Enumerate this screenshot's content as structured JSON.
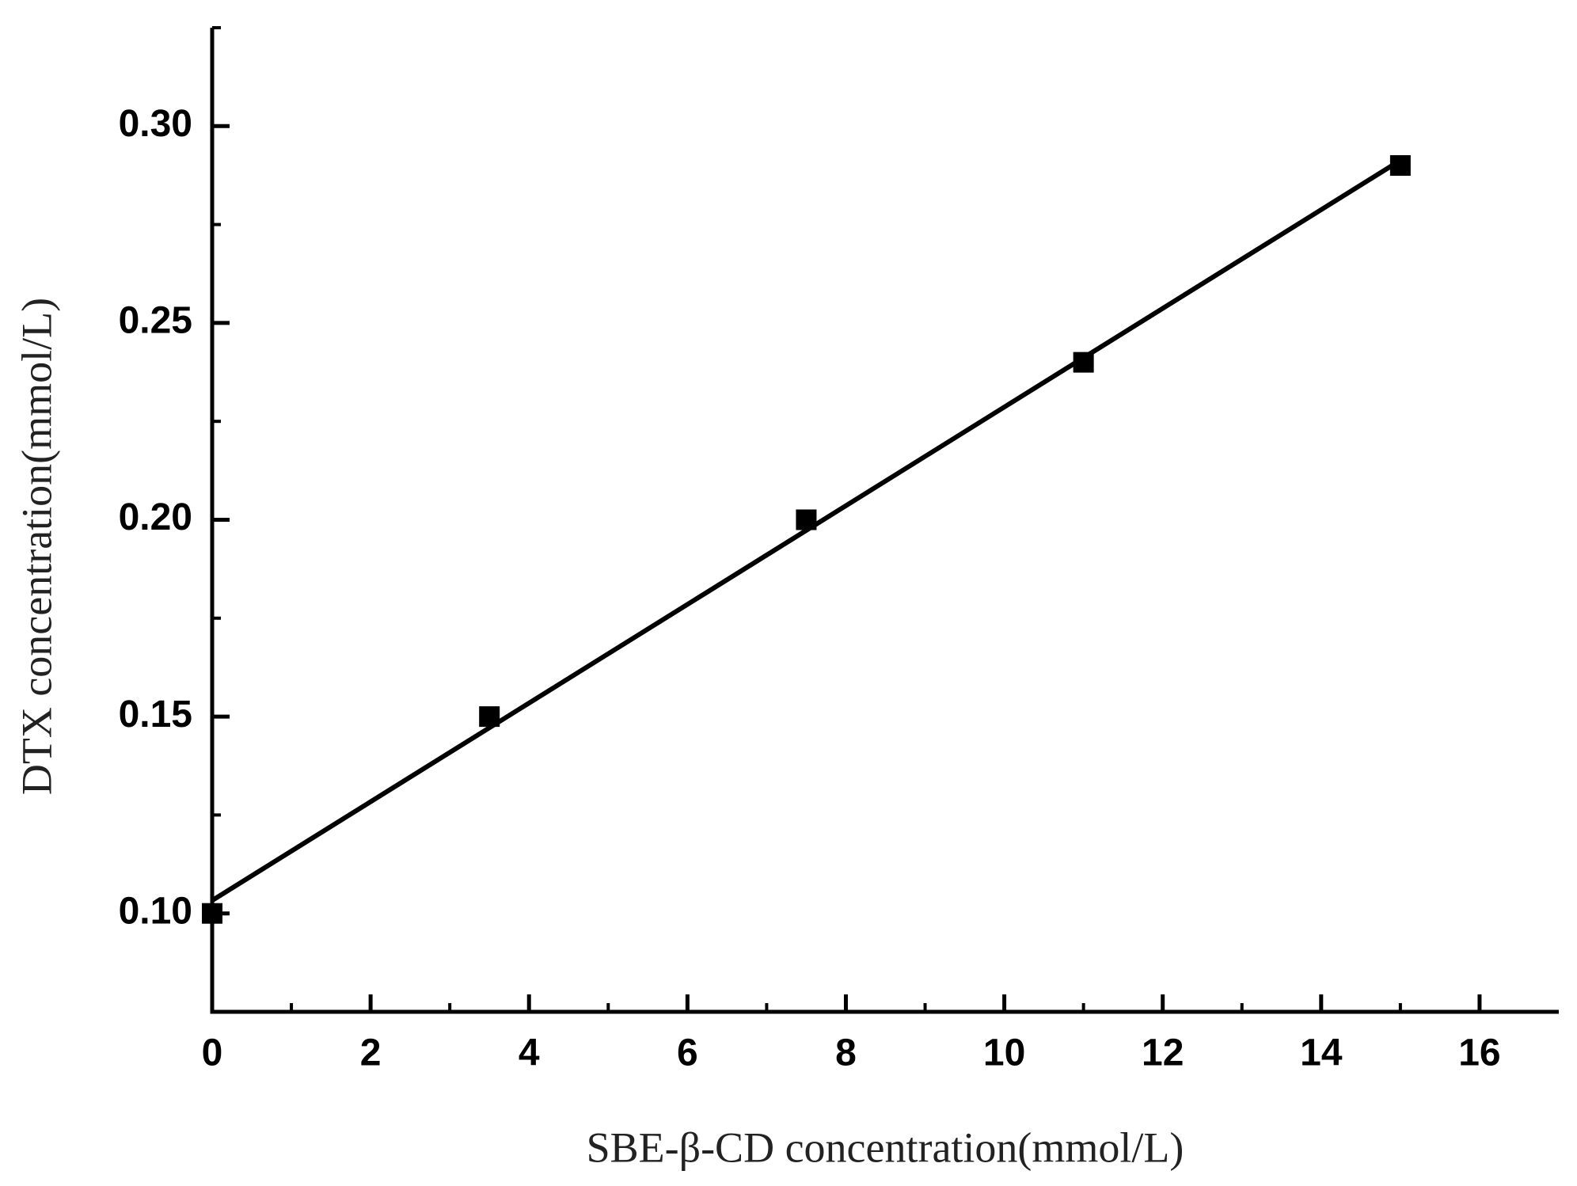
{
  "chart_data": {
    "type": "scatter",
    "x_label": "SBE-β-CD concentration(mmol/L)",
    "y_label": "DTX concentration(mmol/L)",
    "series": [
      {
        "type": "scatter",
        "marker": "square",
        "color": "#000000",
        "x": [
          0,
          3.5,
          7.5,
          11,
          15
        ],
        "values": [
          0.1,
          0.15,
          0.2,
          0.24,
          0.29
        ]
      },
      {
        "type": "line",
        "color": "#000000",
        "x": [
          0,
          15
        ],
        "values": [
          0.1033,
          0.2913
        ]
      }
    ],
    "xlim": [
      0,
      17
    ],
    "xticks": [
      0,
      2,
      4,
      6,
      8,
      10,
      12,
      14,
      16
    ],
    "ylim": [
      0.075,
      0.325
    ],
    "yticks": [
      {
        "value": 0.1,
        "label": "0.10"
      },
      {
        "value": 0.15,
        "label": "0.15"
      },
      {
        "value": 0.2,
        "label": "0.20"
      },
      {
        "value": 0.25,
        "label": "0.25"
      },
      {
        "value": 0.3,
        "label": "0.30"
      }
    ],
    "grid": false
  }
}
